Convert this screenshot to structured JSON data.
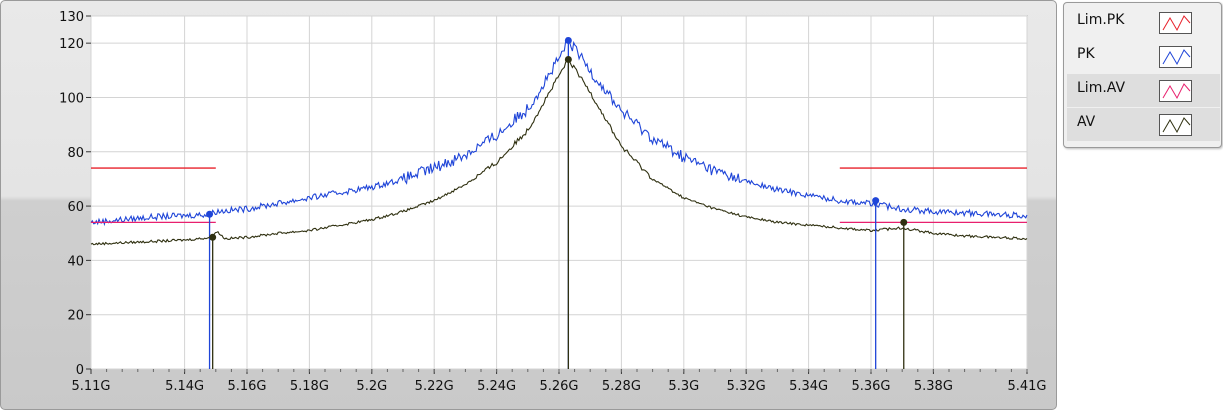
{
  "chart_data": {
    "type": "line",
    "x_unit": "G",
    "xlim": [
      5.11,
      5.41
    ],
    "ylim": [
      0,
      130
    ],
    "x_ticks": [
      {
        "value": 5.11,
        "label": "5.11G"
      },
      {
        "value": 5.14,
        "label": "5.14G"
      },
      {
        "value": 5.16,
        "label": "5.16G"
      },
      {
        "value": 5.18,
        "label": "5.18G"
      },
      {
        "value": 5.2,
        "label": "5.2G"
      },
      {
        "value": 5.22,
        "label": "5.22G"
      },
      {
        "value": 5.24,
        "label": "5.24G"
      },
      {
        "value": 5.26,
        "label": "5.26G"
      },
      {
        "value": 5.28,
        "label": "5.28G"
      },
      {
        "value": 5.3,
        "label": "5.3G"
      },
      {
        "value": 5.32,
        "label": "5.32G"
      },
      {
        "value": 5.34,
        "label": "5.34G"
      },
      {
        "value": 5.36,
        "label": "5.36G"
      },
      {
        "value": 5.38,
        "label": "5.38G"
      },
      {
        "value": 5.41,
        "label": "5.41G"
      }
    ],
    "y_ticks": [
      {
        "value": 0,
        "label": "0"
      },
      {
        "value": 20,
        "label": "20"
      },
      {
        "value": 40,
        "label": "40"
      },
      {
        "value": 60,
        "label": "60"
      },
      {
        "value": 80,
        "label": "80"
      },
      {
        "value": 100,
        "label": "100"
      },
      {
        "value": 120,
        "label": "120"
      },
      {
        "value": 130,
        "label": "130"
      }
    ],
    "grid": true,
    "legend_position": "right",
    "series": [
      {
        "name": "Lim.PK",
        "color": "#e8202a",
        "style": "segments",
        "segments": [
          {
            "x": [
              5.11,
              5.15
            ],
            "y": 74
          },
          {
            "x": [
              5.35,
              5.41
            ],
            "y": 74
          }
        ]
      },
      {
        "name": "PK",
        "color": "#1f45d8",
        "style": "line",
        "x": [
          5.11,
          5.12,
          5.13,
          5.14,
          5.148,
          5.15,
          5.16,
          5.17,
          5.18,
          5.19,
          5.2,
          5.21,
          5.22,
          5.23,
          5.24,
          5.25,
          5.26,
          5.263,
          5.27,
          5.28,
          5.29,
          5.3,
          5.31,
          5.32,
          5.33,
          5.34,
          5.35,
          5.36,
          5.37,
          5.38,
          5.39,
          5.4,
          5.41
        ],
        "y": [
          54,
          55,
          56,
          56.5,
          57,
          58,
          59,
          61,
          63,
          65,
          67,
          70,
          74,
          79,
          86,
          96,
          114,
          121,
          110,
          95,
          85,
          78,
          73,
          69,
          66,
          64,
          62,
          61,
          59,
          58,
          57.5,
          57,
          56.5
        ]
      },
      {
        "name": "Lim.AV",
        "color": "#e8206e",
        "style": "segments",
        "segments": [
          {
            "x": [
              5.11,
              5.15
            ],
            "y": 54
          },
          {
            "x": [
              5.35,
              5.41
            ],
            "y": 54
          }
        ]
      },
      {
        "name": "AV",
        "color": "#2f3010",
        "style": "line",
        "x": [
          5.11,
          5.12,
          5.13,
          5.14,
          5.149,
          5.15,
          5.153,
          5.16,
          5.17,
          5.18,
          5.19,
          5.2,
          5.21,
          5.22,
          5.23,
          5.24,
          5.25,
          5.263,
          5.27,
          5.28,
          5.29,
          5.3,
          5.31,
          5.32,
          5.33,
          5.34,
          5.35,
          5.36,
          5.37,
          5.38,
          5.39,
          5.4,
          5.41
        ],
        "y": [
          46,
          46.5,
          47,
          47.5,
          48.5,
          51,
          48,
          48.5,
          50,
          51,
          53,
          55,
          58,
          62,
          68,
          76,
          88,
          114,
          102,
          82,
          70,
          63,
          59,
          56,
          54,
          53,
          52,
          51,
          52,
          50,
          49,
          48.5,
          48
        ]
      }
    ],
    "markers": [
      {
        "series": "PK",
        "x": 5.148,
        "y": 57
      },
      {
        "series": "AV",
        "x": 5.149,
        "y": 48.5
      },
      {
        "series": "PK",
        "x": 5.263,
        "y": 121
      },
      {
        "series": "AV",
        "x": 5.263,
        "y": 114
      },
      {
        "series": "PK",
        "x": 5.3615,
        "y": 62
      },
      {
        "series": "AV",
        "x": 5.3705,
        "y": 54
      }
    ]
  }
}
